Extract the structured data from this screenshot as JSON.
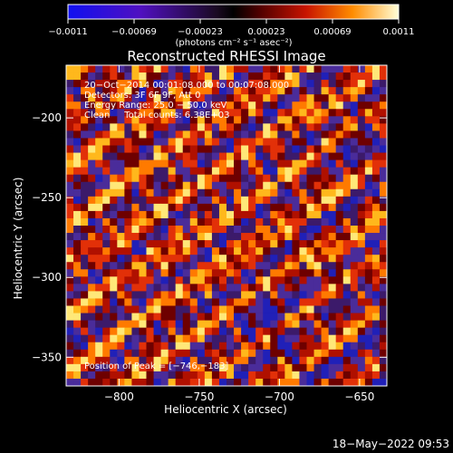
{
  "chart_data": {
    "type": "heatmap",
    "title": "Reconstructed RHESSI Image",
    "xlabel": "Heliocentric X (arcsec)",
    "ylabel": "Heliocentric Y (arcsec)",
    "xlim": [
      -833,
      -633
    ],
    "ylim": [
      -368,
      -167
    ],
    "x_ticks": [
      -800,
      -750,
      -700,
      -650
    ],
    "x_tick_labels": [
      "−800",
      "−750",
      "−700",
      "−650"
    ],
    "y_ticks": [
      -200,
      -250,
      -300,
      -350
    ],
    "y_tick_labels": [
      "−200",
      "−250",
      "−300",
      "−350"
    ],
    "colorbar": {
      "range": [
        -0.0011,
        0.0011
      ],
      "tick_labels": [
        "−0.0011",
        "−0.00069",
        "−0.00023",
        "0.00023",
        "0.00069",
        "0.0011"
      ],
      "units_label": "(photons cm⁻² s⁻¹ asec⁻²)"
    },
    "annotations": [
      "20−Oct−2014 00:01:08.000 to 00:07:08.000",
      "Detectors: 3F 6F 9F, Att 0",
      "Energy Range: 25.0 − 50.0 keV",
      "Clean     Total counts: 6.38E+03"
    ],
    "peak_label": "Position of Peak = [−746,−183]",
    "colors": {
      "positive_low": "#6e0000",
      "positive_mid": "#e02800",
      "positive_high": "#ffd030",
      "negative": "#3c1a6a",
      "negative_strong": "#1a1aa0"
    }
  },
  "footer": {
    "date": "18−May−2022 09:53"
  }
}
